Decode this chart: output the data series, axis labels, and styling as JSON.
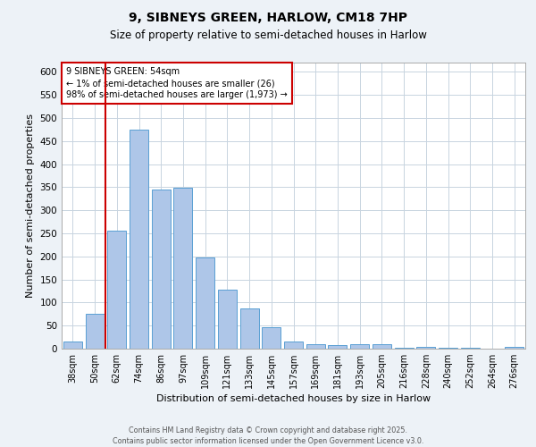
{
  "title1": "9, SIBNEYS GREEN, HARLOW, CM18 7HP",
  "title2": "Size of property relative to semi-detached houses in Harlow",
  "xlabel": "Distribution of semi-detached houses by size in Harlow",
  "ylabel": "Number of semi-detached properties",
  "categories": [
    "38sqm",
    "50sqm",
    "62sqm",
    "74sqm",
    "86sqm",
    "97sqm",
    "109sqm",
    "121sqm",
    "133sqm",
    "145sqm",
    "157sqm",
    "169sqm",
    "181sqm",
    "193sqm",
    "205sqm",
    "216sqm",
    "228sqm",
    "240sqm",
    "252sqm",
    "264sqm",
    "276sqm"
  ],
  "values": [
    16,
    75,
    255,
    475,
    345,
    348,
    197,
    127,
    88,
    46,
    16,
    9,
    8,
    9,
    9,
    2,
    3,
    1,
    1,
    0,
    4
  ],
  "bar_color": "#aec6e8",
  "bar_edge_color": "#5a9fd4",
  "vline_color": "#cc0000",
  "annotation_text": "9 SIBNEYS GREEN: 54sqm\n← 1% of semi-detached houses are smaller (26)\n98% of semi-detached houses are larger (1,973) →",
  "annotation_box_color": "#cc0000",
  "ylim": [
    0,
    620
  ],
  "yticks": [
    0,
    50,
    100,
    150,
    200,
    250,
    300,
    350,
    400,
    450,
    500,
    550,
    600
  ],
  "footer_text": "Contains HM Land Registry data © Crown copyright and database right 2025.\nContains public sector information licensed under the Open Government Licence v3.0.",
  "bg_color": "#edf2f7",
  "plot_bg_color": "#ffffff",
  "grid_color": "#c8d4e0"
}
